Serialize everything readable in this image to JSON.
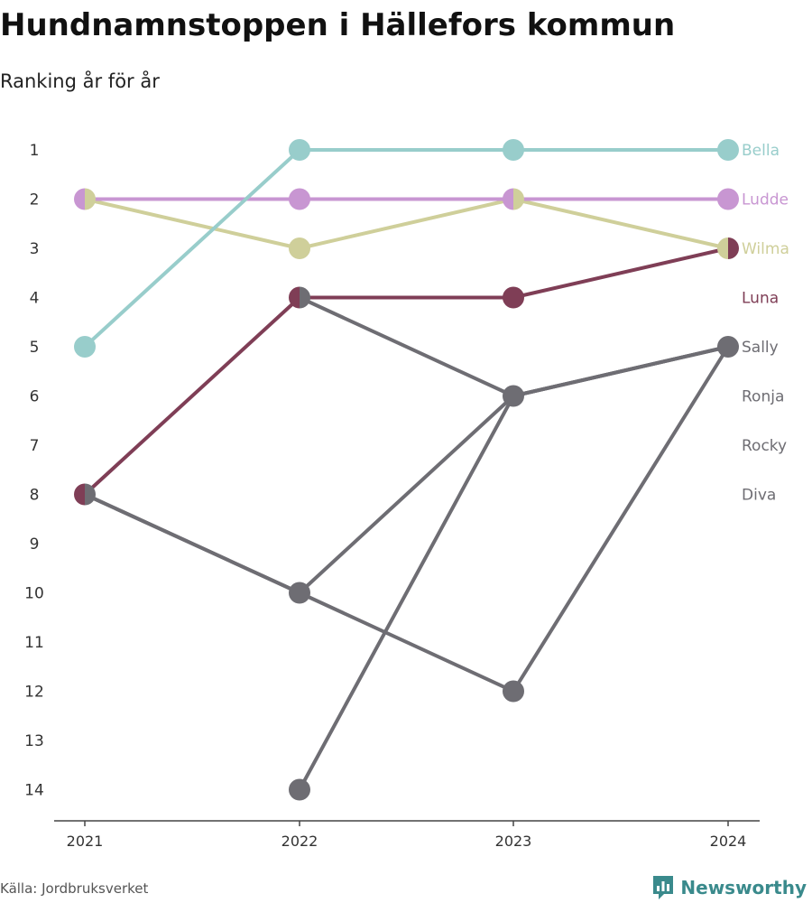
{
  "header": {
    "title": "Hundnamnstoppen i Hällefors kommun",
    "subtitle": "Ranking år för år"
  },
  "footer": {
    "source": "Källa: Jordbruksverket",
    "brand": "Newsworthy",
    "brand_icon": "bar-chart-badge-icon",
    "brand_color": "#3a8a8c"
  },
  "chart_data": {
    "type": "line",
    "title": "Hundnamnstoppen i Hällefors kommun",
    "subtitle": "Ranking år för år",
    "x": [
      "2021",
      "2022",
      "2023",
      "2024"
    ],
    "y_ticks": [
      "1",
      "2",
      "3",
      "4",
      "5",
      "6",
      "7",
      "8",
      "9",
      "10",
      "11",
      "12",
      "13",
      "14"
    ],
    "ylim": [
      1,
      14
    ],
    "y_reversed": true,
    "grid": false,
    "legend": "direct labels at right",
    "series": [
      {
        "name": "Diva",
        "color": "#6e6d73",
        "values": [
          8,
          10,
          12,
          5
        ]
      },
      {
        "name": "Rocky",
        "color": "#6e6d73",
        "values": [
          8,
          10,
          6,
          5
        ]
      },
      {
        "name": "Ronja",
        "color": "#6e6d73",
        "values": [
          null,
          14,
          6,
          5
        ]
      },
      {
        "name": "Sally",
        "color": "#6e6d73",
        "values": [
          null,
          4,
          6,
          5
        ]
      },
      {
        "name": "Luna",
        "color": "#7f3e56",
        "values": [
          8,
          4,
          4,
          3
        ]
      },
      {
        "name": "Wilma",
        "color": "#cfcf9a",
        "values": [
          2,
          3,
          2,
          3
        ]
      },
      {
        "name": "Ludde",
        "color": "#c896d2",
        "values": [
          2,
          2,
          2,
          2
        ]
      },
      {
        "name": "Bella",
        "color": "#98cdcb",
        "values": [
          5,
          1,
          1,
          1
        ]
      }
    ],
    "label_order": [
      "Bella",
      "Ludde",
      "Wilma",
      "Luna",
      "Sally",
      "Ronja",
      "Rocky",
      "Diva"
    ]
  }
}
